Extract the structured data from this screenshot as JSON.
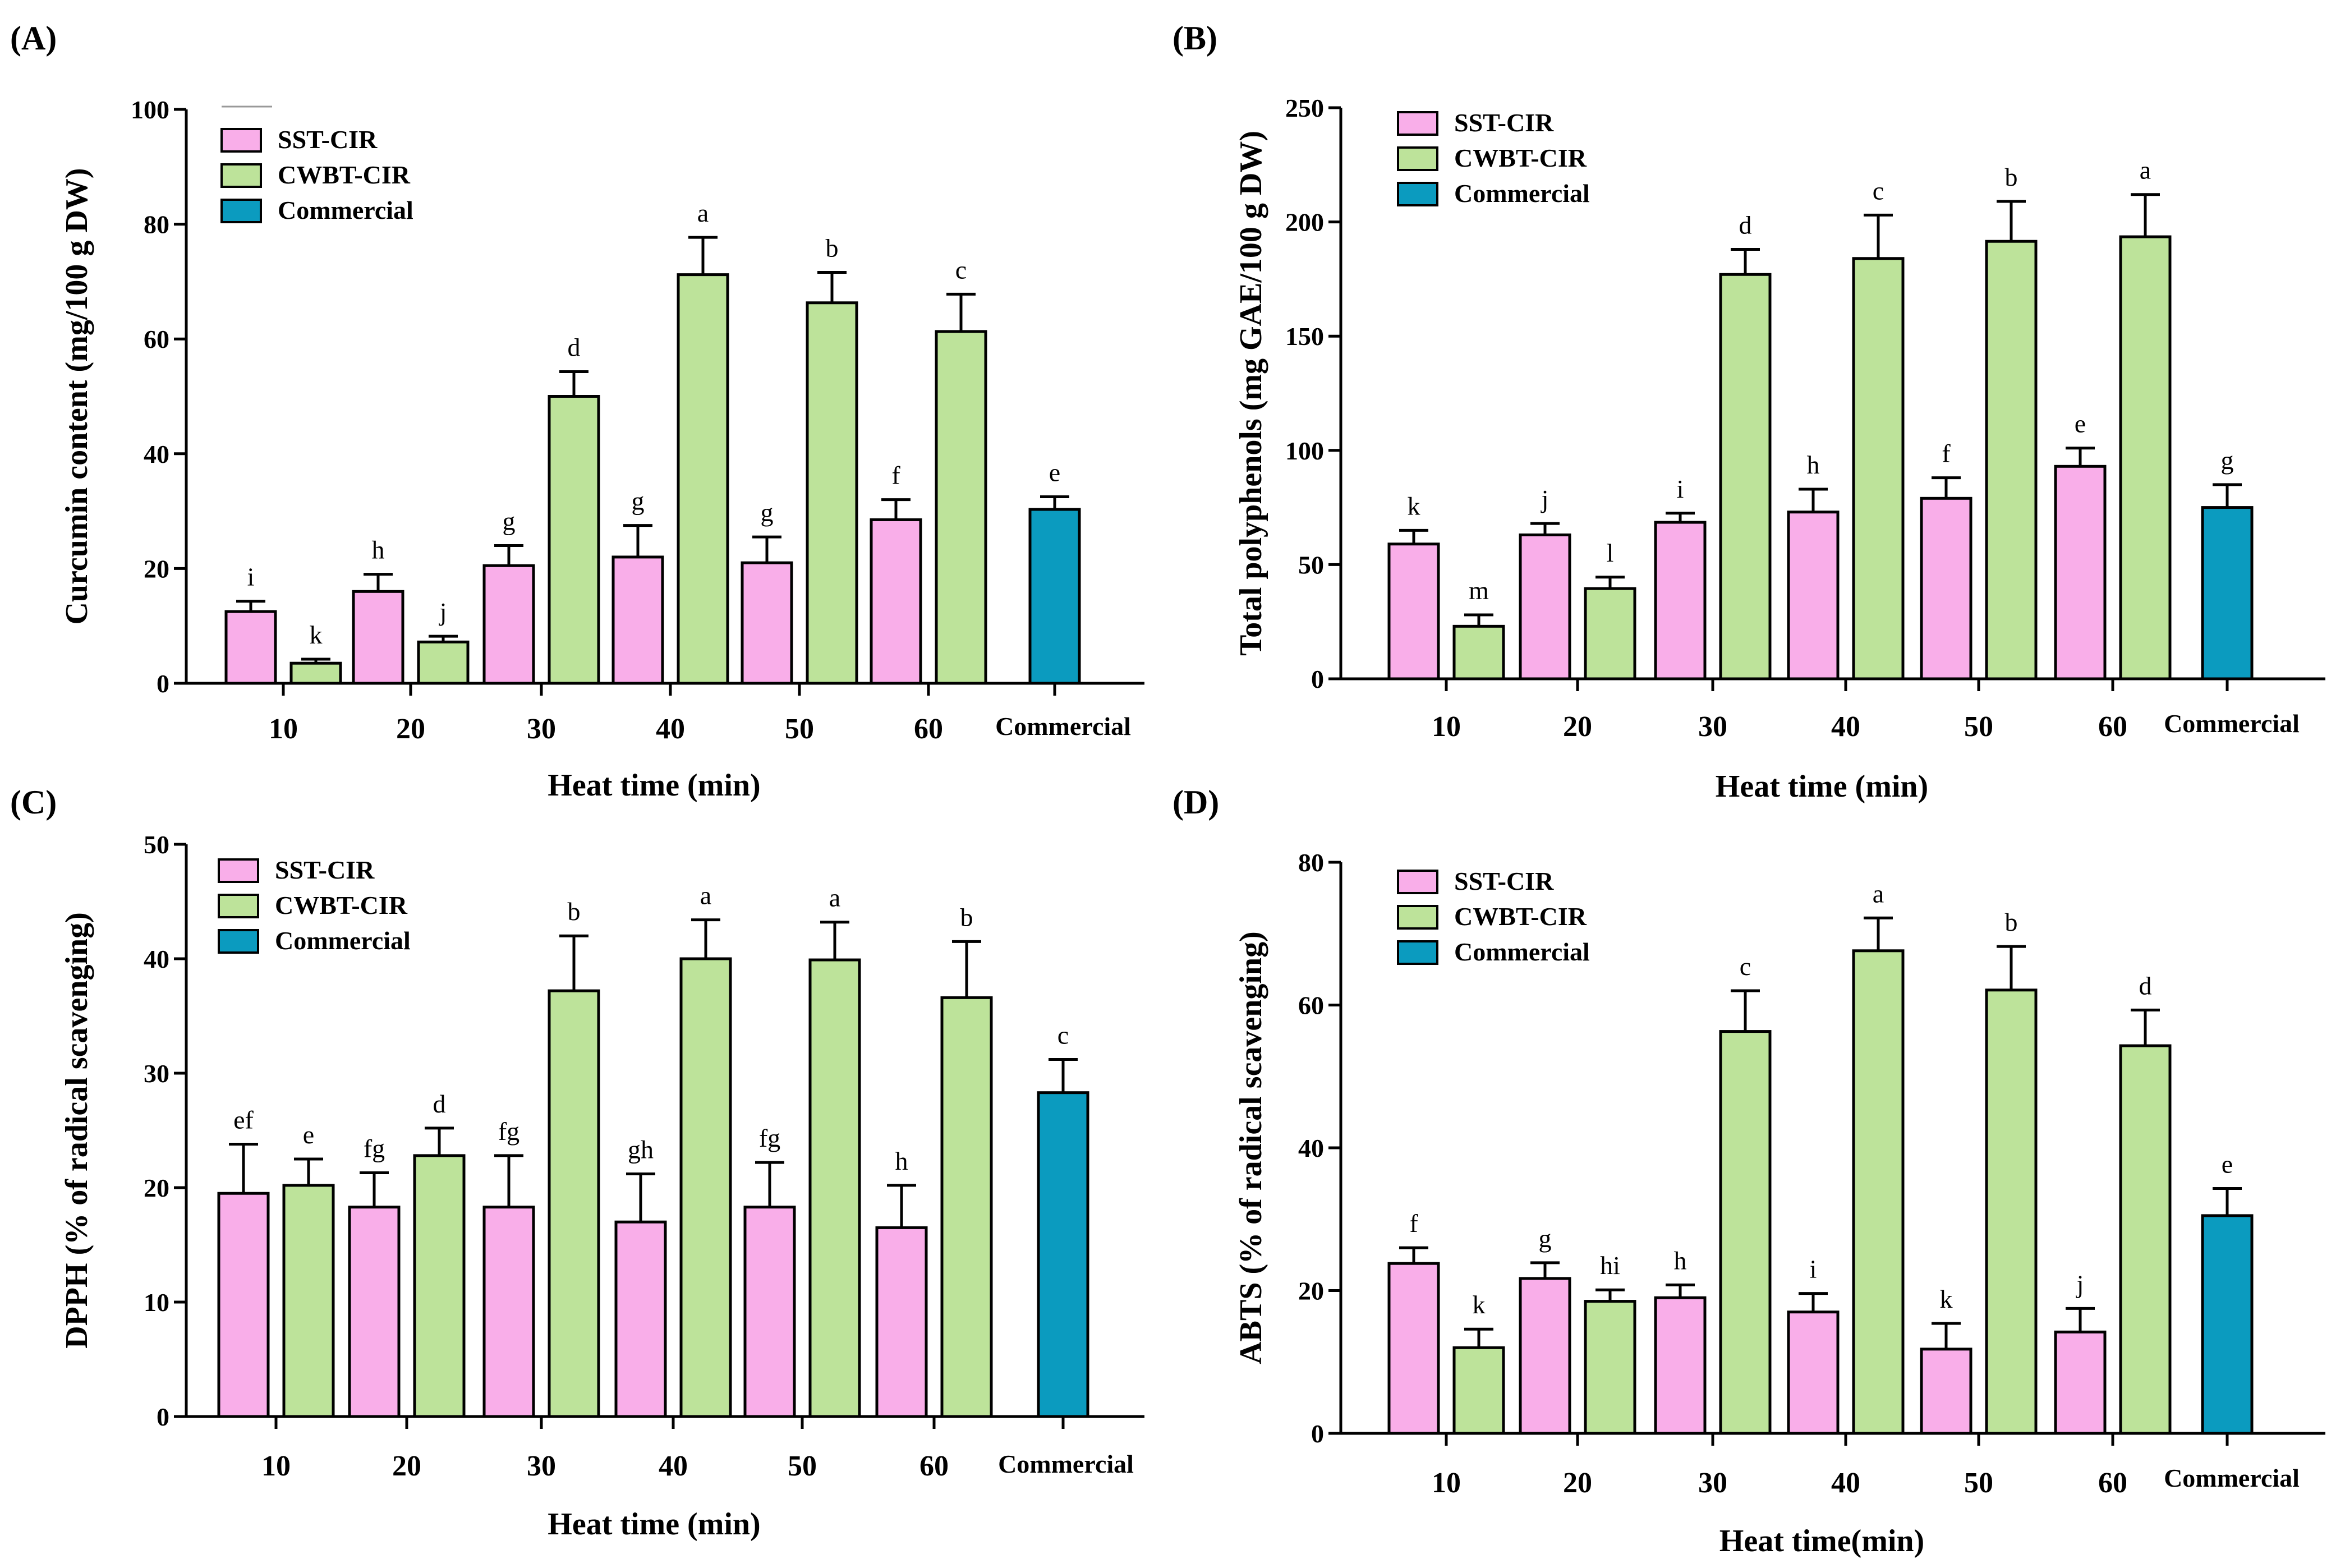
{
  "colors": {
    "SST-CIR": "#f9aee9",
    "CWBT-CIR": "#bde39a",
    "Commercial": "#0b9bbf"
  },
  "chart_data": [
    {
      "type": "bar",
      "panel_label": "(A)",
      "ylabel": "Curcumin content (mg/100 g DW)",
      "xlabel": "Heat time (min)",
      "ylim": [
        0,
        100
      ],
      "yticks": [
        0,
        20,
        40,
        60,
        80,
        100
      ],
      "categories": [
        "10",
        "20",
        "30",
        "40",
        "50",
        "60",
        "Commercial"
      ],
      "series": [
        {
          "name": "SST-CIR",
          "values": [
            12.5,
            16,
            20.5,
            22,
            21,
            28.5,
            null
          ],
          "errors": [
            1.8,
            3,
            3.5,
            5.5,
            4.5,
            3.5,
            null
          ],
          "letters": [
            "i",
            "h",
            "g",
            "g",
            "g",
            "f",
            null
          ]
        },
        {
          "name": "CWBT-CIR",
          "values": [
            3.5,
            7.2,
            50,
            71.2,
            66.3,
            61.3,
            null
          ],
          "errors": [
            0.7,
            1,
            4.3,
            6.5,
            5.3,
            6.5,
            null
          ],
          "letters": [
            "k",
            "j",
            "d",
            "a",
            "b",
            "c",
            null
          ]
        },
        {
          "name": "Commercial",
          "values": [
            null,
            null,
            null,
            null,
            null,
            null,
            30.3
          ],
          "errors": [
            null,
            null,
            null,
            null,
            null,
            null,
            2.2
          ],
          "letters": [
            null,
            null,
            null,
            null,
            null,
            null,
            "e"
          ]
        }
      ],
      "legend": [
        "SST-CIR",
        "CWBT-CIR",
        "Commercial"
      ]
    },
    {
      "type": "bar",
      "panel_label": "(B)",
      "ylabel": "Total polyphenols (mg GAE/100 g DW)",
      "xlabel": "Heat time (min)",
      "ylim": [
        0,
        250
      ],
      "yticks": [
        0,
        50,
        100,
        150,
        200,
        250
      ],
      "categories": [
        "10",
        "20",
        "30",
        "40",
        "50",
        "60",
        "Commercial"
      ],
      "series": [
        {
          "name": "SST-CIR",
          "values": [
            59,
            63,
            68.5,
            73,
            79,
            93,
            null
          ],
          "errors": [
            6,
            5,
            4,
            10,
            9,
            8,
            null
          ],
          "letters": [
            "k",
            "j",
            "i",
            "h",
            "f",
            "e",
            null
          ]
        },
        {
          "name": "CWBT-CIR",
          "values": [
            23,
            39.5,
            177,
            184,
            191.5,
            193.5,
            null
          ],
          "errors": [
            5,
            5,
            11,
            19,
            17.5,
            18.5,
            null
          ],
          "letters": [
            "m",
            "l",
            "d",
            "c",
            "b",
            "a",
            null
          ]
        },
        {
          "name": "Commercial",
          "values": [
            null,
            null,
            null,
            null,
            null,
            null,
            75
          ],
          "errors": [
            null,
            null,
            null,
            null,
            null,
            null,
            10
          ],
          "letters": [
            null,
            null,
            null,
            null,
            null,
            null,
            "g"
          ]
        }
      ],
      "legend": [
        "SST-CIR",
        "CWBT-CIR",
        "Commercial"
      ]
    },
    {
      "type": "bar",
      "panel_label": "(C)",
      "ylabel": "DPPH (% of radical scavenging)",
      "xlabel": "Heat time (min)",
      "ylim": [
        0,
        50
      ],
      "yticks": [
        0,
        10,
        20,
        30,
        40,
        50
      ],
      "categories": [
        "10",
        "20",
        "30",
        "40",
        "50",
        "60",
        "Commercial"
      ],
      "series": [
        {
          "name": "SST-CIR",
          "values": [
            19.5,
            18.3,
            18.3,
            17,
            18.3,
            16.5,
            null
          ],
          "errors": [
            4.3,
            3,
            4.5,
            4.2,
            3.9,
            3.7,
            null
          ],
          "letters": [
            "ef",
            "fg",
            "fg",
            "gh",
            "fg",
            "h",
            null
          ]
        },
        {
          "name": "CWBT-CIR",
          "values": [
            20.2,
            22.8,
            37.2,
            40,
            39.9,
            36.6,
            null
          ],
          "errors": [
            2.3,
            2.4,
            4.8,
            3.4,
            3.3,
            4.9,
            null
          ],
          "letters": [
            "e",
            "d",
            "b",
            "a",
            "a",
            "b",
            null
          ]
        },
        {
          "name": "Commercial",
          "values": [
            null,
            null,
            null,
            null,
            null,
            null,
            28.3
          ],
          "errors": [
            null,
            null,
            null,
            null,
            null,
            null,
            2.9
          ],
          "letters": [
            null,
            null,
            null,
            null,
            null,
            null,
            "c"
          ]
        }
      ],
      "legend": [
        "SST-CIR",
        "CWBT-CIR",
        "Commercial"
      ]
    },
    {
      "type": "bar",
      "panel_label": "(D)",
      "ylabel": "ABTS (% of radical scavenging)",
      "xlabel": "Heat time(min)",
      "ylim": [
        0,
        80
      ],
      "yticks": [
        0,
        20,
        40,
        60,
        80
      ],
      "categories": [
        "10",
        "20",
        "30",
        "40",
        "50",
        "60",
        "Commercial"
      ],
      "series": [
        {
          "name": "SST-CIR",
          "values": [
            23.8,
            21.7,
            19,
            17,
            11.8,
            14.2,
            null
          ],
          "errors": [
            2.2,
            2.2,
            1.8,
            2.6,
            3.6,
            3.3,
            null
          ],
          "letters": [
            "f",
            "g",
            "h",
            "i",
            "k",
            "j",
            null
          ]
        },
        {
          "name": "CWBT-CIR",
          "values": [
            12,
            18.5,
            56.3,
            67.6,
            62.1,
            54.3,
            null
          ],
          "errors": [
            2.6,
            1.6,
            5.7,
            4.6,
            6.1,
            5,
            null
          ],
          "letters": [
            "k",
            "hi",
            "c",
            "a",
            "b",
            "d",
            null
          ]
        },
        {
          "name": "Commercial",
          "values": [
            null,
            null,
            null,
            null,
            null,
            null,
            30.5
          ],
          "errors": [
            null,
            null,
            null,
            null,
            null,
            null,
            3.8
          ],
          "letters": [
            null,
            null,
            null,
            null,
            null,
            null,
            "e"
          ]
        }
      ],
      "legend": [
        "SST-CIR",
        "CWBT-CIR",
        "Commercial"
      ]
    }
  ]
}
